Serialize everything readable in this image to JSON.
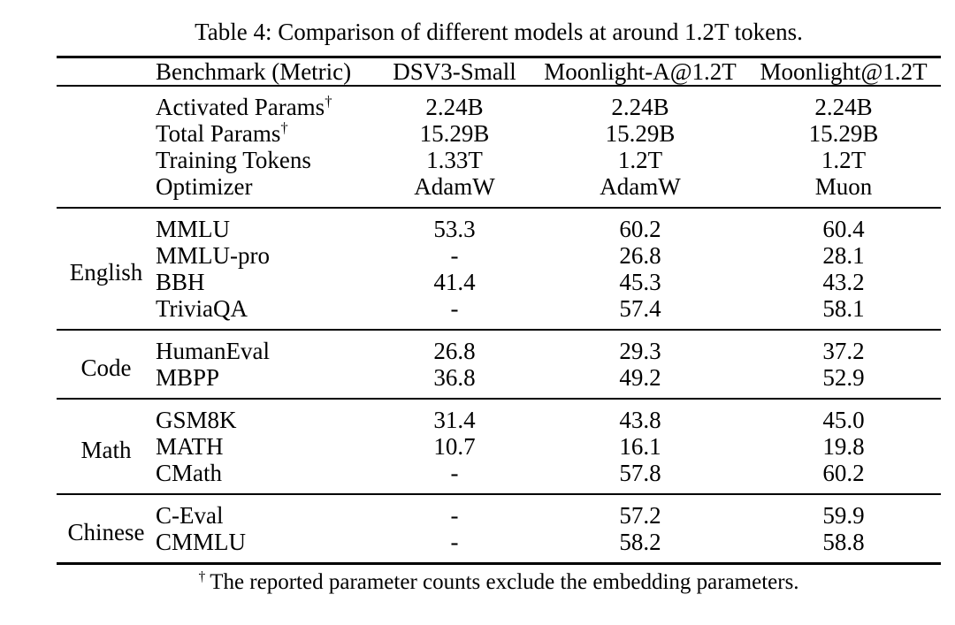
{
  "caption": "Table 4: Comparison of different models at around 1.2T tokens.",
  "table": {
    "header": {
      "benchmark": "Benchmark (Metric)",
      "models": [
        "DSV3-Small",
        "Moonlight-A@1.2T",
        "Moonlight@1.2T"
      ]
    },
    "sections": [
      {
        "group": "",
        "rows": [
          {
            "benchmark": "Activated Params",
            "sup": "†",
            "values": [
              "2.24B",
              "2.24B",
              "2.24B"
            ],
            "bold": [
              false,
              false,
              false
            ]
          },
          {
            "benchmark": "Total Params",
            "sup": "†",
            "values": [
              "15.29B",
              "15.29B",
              "15.29B"
            ],
            "bold": [
              false,
              false,
              false
            ]
          },
          {
            "benchmark": "Training Tokens",
            "sup": "",
            "values": [
              "1.33T",
              "1.2T",
              "1.2T"
            ],
            "bold": [
              false,
              false,
              false
            ]
          },
          {
            "benchmark": "Optimizer",
            "sup": "",
            "values": [
              "AdamW",
              "AdamW",
              "Muon"
            ],
            "bold": [
              false,
              false,
              false
            ]
          }
        ]
      },
      {
        "group": "English",
        "rows": [
          {
            "benchmark": "MMLU",
            "sup": "",
            "values": [
              "53.3",
              "60.2",
              "60.4"
            ],
            "bold": [
              false,
              false,
              true
            ]
          },
          {
            "benchmark": "MMLU-pro",
            "sup": "",
            "values": [
              "-",
              "26.8",
              "28.1"
            ],
            "bold": [
              false,
              false,
              true
            ]
          },
          {
            "benchmark": "BBH",
            "sup": "",
            "values": [
              "41.4",
              "45.3",
              "43.2"
            ],
            "bold": [
              false,
              true,
              false
            ]
          },
          {
            "benchmark": "TriviaQA",
            "sup": "",
            "values": [
              "-",
              "57.4",
              "58.1"
            ],
            "bold": [
              false,
              false,
              true
            ]
          }
        ]
      },
      {
        "group": "Code",
        "rows": [
          {
            "benchmark": "HumanEval",
            "sup": "",
            "values": [
              "26.8",
              "29.3",
              "37.2"
            ],
            "bold": [
              false,
              false,
              true
            ]
          },
          {
            "benchmark": "MBPP",
            "sup": "",
            "values": [
              "36.8",
              "49.2",
              "52.9"
            ],
            "bold": [
              false,
              false,
              true
            ]
          }
        ]
      },
      {
        "group": "Math",
        "rows": [
          {
            "benchmark": "GSM8K",
            "sup": "",
            "values": [
              "31.4",
              "43.8",
              "45.0"
            ],
            "bold": [
              false,
              false,
              true
            ]
          },
          {
            "benchmark": "MATH",
            "sup": "",
            "values": [
              "10.7",
              "16.1",
              "19.8"
            ],
            "bold": [
              false,
              false,
              true
            ]
          },
          {
            "benchmark": "CMath",
            "sup": "",
            "values": [
              "-",
              "57.8",
              "60.2"
            ],
            "bold": [
              false,
              false,
              true
            ]
          }
        ]
      },
      {
        "group": "Chinese",
        "rows": [
          {
            "benchmark": "C-Eval",
            "sup": "",
            "values": [
              "-",
              "57.2",
              "59.9"
            ],
            "bold": [
              false,
              false,
              true
            ]
          },
          {
            "benchmark": "CMMLU",
            "sup": "",
            "values": [
              "-",
              "58.2",
              "58.8"
            ],
            "bold": [
              false,
              false,
              true
            ]
          }
        ]
      }
    ]
  },
  "footnote": {
    "marker": "†",
    "text": "The reported parameter counts exclude the embedding parameters."
  }
}
